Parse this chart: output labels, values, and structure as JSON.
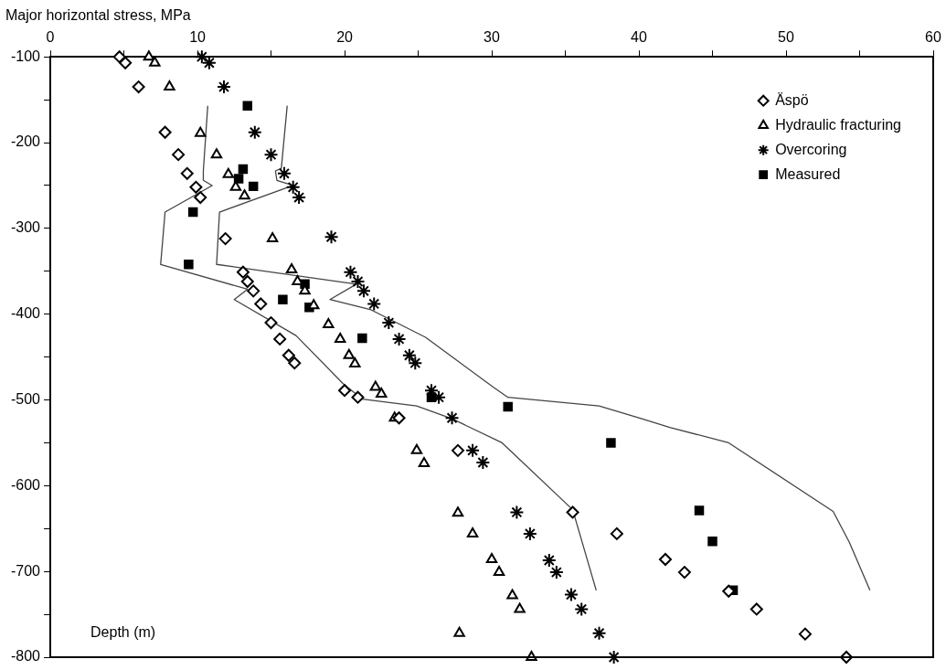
{
  "chart_data": {
    "type": "scatter",
    "xlabel": "Major horizontal stress, MPa",
    "ylabel": "Depth (m)",
    "xlim": [
      0,
      60
    ],
    "xticks": [
      0,
      {
        "value": 5,
        "label": null
      },
      10,
      {
        "value": 15,
        "label": null
      },
      20,
      {
        "value": 25,
        "label": null
      },
      30,
      {
        "value": 35,
        "label": null
      },
      40,
      {
        "value": 45,
        "label": null
      },
      50,
      {
        "value": 55,
        "label": null
      },
      60
    ],
    "ylim": [
      -800,
      -100
    ],
    "yticks": [
      -800,
      {
        "value": -750,
        "label": null
      },
      -700,
      {
        "value": -650,
        "label": null
      },
      -600,
      {
        "value": -550,
        "label": null
      },
      -500,
      {
        "value": -450,
        "label": null
      },
      -400,
      {
        "value": -350,
        "label": null
      },
      -300,
      {
        "value": -250,
        "label": null
      },
      -200,
      {
        "value": -150,
        "label": null
      },
      -100
    ],
    "grid": false,
    "legend": "top right",
    "series": [
      {
        "name": "Äspö",
        "marker": "diamond",
        "color": "#000000",
        "x": [
          4.7,
          5.1,
          6.0,
          7.8,
          8.7,
          9.3,
          9.9,
          10.2,
          11.9,
          13.1,
          13.4,
          13.8,
          14.3,
          15.0,
          15.6,
          16.2,
          16.6,
          20.0,
          20.9,
          23.7,
          27.7,
          35.5,
          38.5,
          41.8,
          43.1,
          46.1,
          48.0,
          51.3,
          54.1
        ],
        "values": [
          -100,
          -107,
          -135,
          -188,
          -214,
          -236,
          -252,
          -264,
          -312,
          -351,
          -362,
          -373,
          -388,
          -410,
          -429,
          -448,
          -457,
          -489,
          -497,
          -521,
          -559,
          -631,
          -656,
          -686,
          -701,
          -723,
          -744,
          -773,
          -800
        ]
      },
      {
        "name": "Hydraulic fracturing",
        "marker": "triangle",
        "color": "#000000",
        "x": [
          6.7,
          7.1,
          8.1,
          10.2,
          11.3,
          12.1,
          12.6,
          13.2,
          15.1,
          16.4,
          16.8,
          17.3,
          17.9,
          18.9,
          19.7,
          20.3,
          20.7,
          22.1,
          22.5,
          23.4,
          24.9,
          25.4,
          27.7,
          28.7,
          30.0,
          30.5,
          31.4,
          31.9,
          27.8,
          32.7
        ],
        "values": [
          -100,
          -107,
          -135,
          -189,
          -214,
          -237,
          -252,
          -262,
          -312,
          -348,
          -362,
          -373,
          -390,
          -412,
          -429,
          -448,
          -458,
          -485,
          -493,
          -521,
          -559,
          -574,
          -632,
          -656,
          -686,
          -701,
          -728,
          -744,
          -772,
          -800
        ]
      },
      {
        "name": "Overcoring",
        "marker": "cross",
        "color": "#000000",
        "x": [
          10.3,
          10.8,
          11.8,
          13.9,
          15.0,
          15.9,
          16.5,
          16.9,
          19.1,
          20.4,
          20.9,
          21.3,
          22.0,
          23.0,
          23.7,
          24.4,
          24.8,
          25.9,
          26.4,
          27.3,
          28.7,
          29.4,
          31.7,
          32.6,
          33.9,
          34.4,
          35.4,
          36.1,
          37.3,
          38.3
        ],
        "values": [
          -100,
          -107,
          -135,
          -188,
          -214,
          -236,
          -252,
          -264,
          -310,
          -351,
          -362,
          -373,
          -388,
          -410,
          -429,
          -448,
          -457,
          -489,
          -497,
          -521,
          -559,
          -573,
          -631,
          -656,
          -687,
          -701,
          -727,
          -744,
          -772,
          -800
        ]
      },
      {
        "name": "Measured",
        "marker": "square",
        "color": "#000000",
        "x": [
          13.4,
          13.1,
          12.8,
          13.8,
          9.7,
          9.4,
          17.3,
          15.8,
          17.6,
          21.2,
          25.9,
          31.1,
          38.1,
          44.1,
          45.0,
          46.4
        ],
        "values": [
          -157,
          -231,
          -242,
          -251,
          -281,
          -342,
          -365,
          -383,
          -392,
          -428,
          -497,
          -508,
          -550,
          -629,
          -665,
          -722
        ]
      },
      {
        "type": "line",
        "marker": "none",
        "color": "#444444",
        "x": [
          10.7,
          10.4,
          10.4,
          11.0,
          7.8,
          7.5,
          13.4,
          12.5,
          16.7,
          19.9,
          21.2,
          24.9,
          27.3,
          30.7,
          35.5,
          37.1
        ],
        "values": [
          -157,
          -233,
          -244,
          -250,
          -281,
          -342,
          -371,
          -383,
          -425,
          -481,
          -499,
          -507,
          -522,
          -550,
          -628,
          -722
        ]
      },
      {
        "type": "line",
        "marker": "none",
        "color": "#444444",
        "x": [
          16.1,
          15.7,
          15.3,
          15.4,
          16.5,
          11.5,
          11.3,
          20.8,
          19.0,
          21.8,
          25.5,
          27.4,
          30.1,
          31.1,
          37.3,
          40.2,
          42.1,
          46.1,
          53.2,
          54.3,
          55.7
        ],
        "values": [
          -157,
          -230,
          -233,
          -244,
          -250,
          -281,
          -342,
          -365,
          -383,
          -395,
          -427,
          -451,
          -485,
          -497,
          -507,
          -522,
          -532,
          -550,
          -630,
          -666,
          -722
        ]
      }
    ]
  }
}
